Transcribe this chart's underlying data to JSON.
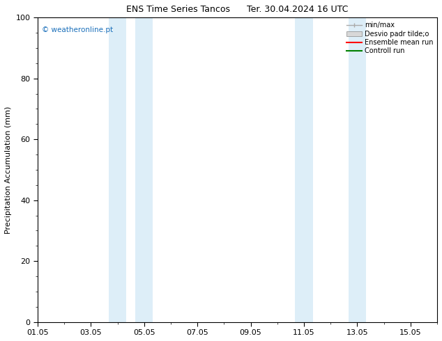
{
  "title": "ENS Time Series Tancos      Ter. 30.04.2024 16 UTC",
  "ylabel": "Precipitation Accumulation (mm)",
  "watermark": "© weatheronline.pt",
  "ylim": [
    0,
    100
  ],
  "xlim": [
    1,
    16
  ],
  "xtick_labels": [
    "01.05",
    "03.05",
    "05.05",
    "07.05",
    "09.05",
    "11.05",
    "13.05",
    "15.05"
  ],
  "xtick_positions": [
    1,
    3,
    5,
    7,
    9,
    11,
    13,
    15
  ],
  "ytick_labels": [
    "0",
    "20",
    "40",
    "60",
    "80",
    "100"
  ],
  "ytick_positions": [
    0,
    20,
    40,
    60,
    80,
    100
  ],
  "shade_regions": [
    {
      "xmin": 3.67,
      "xmax": 4.33
    },
    {
      "xmin": 4.67,
      "xmax": 5.33
    },
    {
      "xmin": 10.67,
      "xmax": 11.33
    },
    {
      "xmin": 12.67,
      "xmax": 13.33
    }
  ],
  "shade_color": "#ddeef8",
  "background_color": "#ffffff",
  "legend_labels": [
    "min/max",
    "Desvio padr tilde;o",
    "Ensemble mean run",
    "Controll run"
  ],
  "legend_colors_line": [
    "#aaaaaa",
    "#cccccc",
    "#ff0000",
    "#008000"
  ],
  "watermark_color": "#1a6fba",
  "title_fontsize": 9,
  "axis_label_fontsize": 8,
  "tick_fontsize": 8,
  "legend_fontsize": 7
}
